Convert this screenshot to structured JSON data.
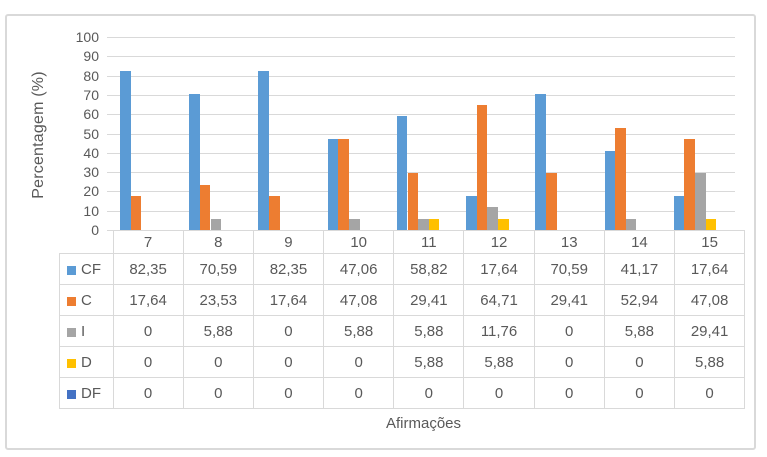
{
  "chart_data": {
    "type": "bar",
    "title": "",
    "xlabel": "Afirmações",
    "ylabel": "Percentagem (%)",
    "categories": [
      "7",
      "8",
      "9",
      "10",
      "11",
      "12",
      "13",
      "14",
      "15"
    ],
    "y_ticks": [
      0,
      10,
      20,
      30,
      40,
      50,
      60,
      70,
      80,
      90,
      100
    ],
    "ylim": [
      0,
      100
    ],
    "grid": true,
    "legend_position": "data-table-left",
    "series": [
      {
        "name": "CF",
        "color": "#5B9BD5",
        "values": [
          82.35,
          70.59,
          82.35,
          47.06,
          58.82,
          17.64,
          70.59,
          41.17,
          17.64
        ],
        "labels": [
          "82,35",
          "70,59",
          "82,35",
          "47,06",
          "58,82",
          "17,64",
          "70,59",
          "41,17",
          "17,64"
        ]
      },
      {
        "name": "C",
        "color": "#ED7D31",
        "values": [
          17.64,
          23.53,
          17.64,
          47.08,
          29.41,
          64.71,
          29.41,
          52.94,
          47.08
        ],
        "labels": [
          "17,64",
          "23,53",
          "17,64",
          "47,08",
          "29,41",
          "64,71",
          "29,41",
          "52,94",
          "47,08"
        ]
      },
      {
        "name": "I",
        "color": "#A5A5A5",
        "values": [
          0,
          5.88,
          0,
          5.88,
          5.88,
          11.76,
          0,
          5.88,
          29.41
        ],
        "labels": [
          "0",
          "5,88",
          "0",
          "5,88",
          "5,88",
          "11,76",
          "0",
          "5,88",
          "29,41"
        ]
      },
      {
        "name": "D",
        "color": "#FFC000",
        "values": [
          0,
          0,
          0,
          0,
          5.88,
          5.88,
          0,
          0,
          5.88
        ],
        "labels": [
          "0",
          "0",
          "0",
          "0",
          "5,88",
          "5,88",
          "0",
          "0",
          "5,88"
        ]
      },
      {
        "name": "DF",
        "color": "#4472C4",
        "values": [
          0,
          0,
          0,
          0,
          0,
          0,
          0,
          0,
          0
        ],
        "labels": [
          "0",
          "0",
          "0",
          "0",
          "0",
          "0",
          "0",
          "0",
          "0"
        ]
      }
    ]
  },
  "colors": {
    "grid": "#D9D9D9",
    "axis_text": "#595959",
    "frame_border": "#D9D9D9"
  }
}
